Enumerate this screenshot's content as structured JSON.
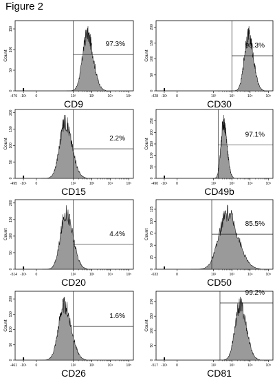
{
  "figure_title": "Figure 2",
  "style": {
    "fill": "#9a9a9a",
    "stroke": "#111111",
    "gate_color": "#222222"
  },
  "chart_data": [
    {
      "type": "histogram",
      "marker": "CD9",
      "gate_percent": "97.3%",
      "ylabel": "Count",
      "y_ticks": [
        "0",
        "50",
        "100",
        "150"
      ],
      "ylim": [
        0,
        170
      ],
      "x_min_label": "-479",
      "x_ticks": [
        "-10¹",
        "0",
        "10²",
        "10³",
        "10⁴",
        "10⁵"
      ],
      "peak_log": 2.75,
      "spread": 0.28,
      "gate_start_log": 2.0,
      "gate_y": 88
    },
    {
      "type": "histogram",
      "marker": "CD30",
      "gate_percent": "98.3%",
      "ylabel": "Count",
      "y_ticks": [
        "0",
        "50",
        "100",
        "150",
        "200"
      ],
      "ylim": [
        0,
        220
      ],
      "x_min_label": "-428",
      "x_ticks": [
        "-10¹",
        "0",
        "10²",
        "10³",
        "10⁴",
        "10⁵"
      ],
      "peak_log": 3.9,
      "spread": 0.24,
      "gate_start_log": 3.0,
      "gate_y": 110
    },
    {
      "type": "histogram",
      "marker": "CD15",
      "gate_percent": "2.2%",
      "ylabel": "Count",
      "y_ticks": [
        "0",
        "50",
        "100",
        "150",
        "200"
      ],
      "ylim": [
        0,
        210
      ],
      "x_min_label": "-495",
      "x_ticks": [
        "-10¹",
        "0",
        "10²",
        "10³",
        "10⁴",
        "10⁵"
      ],
      "peak_log": 1.55,
      "spread": 0.32,
      "gate_start_log": 2.0,
      "gate_y": 90
    },
    {
      "type": "histogram",
      "marker": "CD49b",
      "gate_percent": "97.1%",
      "ylabel": "Count",
      "y_ticks": [
        "0",
        "50",
        "100",
        "150",
        "200",
        "250"
      ],
      "ylim": [
        0,
        300
      ],
      "x_min_label": "-490",
      "x_ticks": [
        "-10¹",
        "0",
        "10²",
        "10³",
        "10⁴",
        "10⁵"
      ],
      "peak_log": 2.55,
      "spread": 0.16,
      "gate_start_log": 2.25,
      "gate_y": 145
    },
    {
      "type": "histogram",
      "marker": "CD20",
      "gate_percent": "4.4%",
      "ylabel": "Count",
      "y_ticks": [
        "0",
        "50",
        "100",
        "150",
        "200"
      ],
      "ylim": [
        0,
        210
      ],
      "x_min_label": "-514",
      "x_ticks": [
        "-10¹",
        "0",
        "10²",
        "10³",
        "10⁴",
        "10⁵"
      ],
      "peak_log": 1.6,
      "spread": 0.32,
      "gate_start_log": 2.0,
      "gate_y": 75
    },
    {
      "type": "histogram",
      "marker": "CD50",
      "gate_percent": "85.5%",
      "ylabel": "Count",
      "y_ticks": [
        "0",
        "25",
        "50",
        "75",
        "100",
        "125"
      ],
      "ylim": [
        0,
        145
      ],
      "x_min_label": "-633",
      "x_ticks": [
        "0",
        "10²",
        "10³",
        "10⁴",
        "10⁵"
      ],
      "peak_log": 2.75,
      "spread": 0.5,
      "gate_start_log": 1.9,
      "gate_y": 73
    },
    {
      "type": "histogram",
      "marker": "CD26",
      "gate_percent": "1.6%",
      "ylabel": "Count",
      "y_ticks": [
        "0",
        "50",
        "100",
        "150",
        "200"
      ],
      "ylim": [
        0,
        225
      ],
      "x_min_label": "-461",
      "x_ticks": [
        "-10¹",
        "0",
        "10²",
        "10³",
        "10⁴",
        "10⁵"
      ],
      "peak_log": 1.5,
      "spread": 0.33,
      "gate_start_log": 2.0,
      "gate_y": 110
    },
    {
      "type": "histogram",
      "marker": "CD81",
      "gate_percent": "99.2%",
      "ylabel": "Count",
      "y_ticks": [
        "0",
        "50",
        "100",
        "150",
        "200"
      ],
      "ylim": [
        0,
        235
      ],
      "x_min_label": "-517",
      "x_ticks": [
        "-10¹",
        "0",
        "10²",
        "10³",
        "10⁴",
        "10⁵"
      ],
      "peak_log": 3.45,
      "spread": 0.3,
      "gate_start_log": 2.35,
      "gate_y": 195
    }
  ]
}
